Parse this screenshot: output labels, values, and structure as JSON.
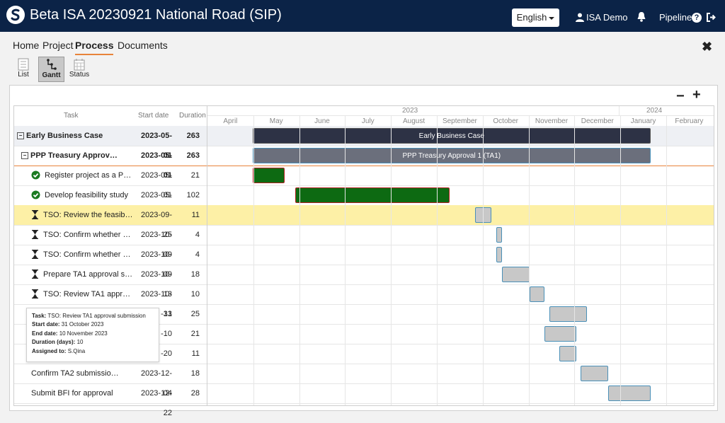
{
  "header": {
    "title": "Beta ISA 20230921 National Road (SIP)",
    "language": "English",
    "user": "ISA Demo",
    "pipeline": "Pipeline",
    "help": "?"
  },
  "nav": {
    "tabs": [
      {
        "label": "Home"
      },
      {
        "label": "Project"
      },
      {
        "label": "Process",
        "active": true
      },
      {
        "label": "Documents"
      }
    ],
    "close": "✖"
  },
  "views": [
    {
      "label": "List",
      "icon": "list-icon"
    },
    {
      "label": "Gantt",
      "icon": "gantt-icon",
      "active": true
    },
    {
      "label": "Status",
      "icon": "calendar-icon"
    }
  ],
  "zoom": {
    "out": "−",
    "in": "+"
  },
  "grid": {
    "headers": {
      "task": "Task",
      "start": "Start date",
      "duration": "Duration"
    }
  },
  "timescale": {
    "years": [
      {
        "label": "2023"
      },
      {
        "label": "2024"
      }
    ],
    "months": [
      "April",
      "May",
      "June",
      "July",
      "August",
      "September",
      "October",
      "November",
      "December",
      "January",
      "February"
    ]
  },
  "tasks": [
    {
      "label": "Early Business Case",
      "start_display": "2023-05-01",
      "duration": "263",
      "level": 0,
      "bold": true,
      "toggle": "−",
      "bar": {
        "start": "2023-05-01",
        "end": "2024-01-19",
        "label": "Early Business Case",
        "kind": "summary1"
      }
    },
    {
      "label": "PPP Treasury Approv…",
      "start_display": "2023-05-01",
      "duration": "263",
      "level": 1,
      "bold": true,
      "toggle": "−",
      "bar": {
        "start": "2023-05-01",
        "end": "2024-01-19",
        "label": "PPP Treasury Approval 1 (TA1)",
        "kind": "summary2"
      }
    },
    {
      "label": "Register project as a P…",
      "start_display": "2023-05-01",
      "duration": "21",
      "level": 2,
      "status": "check-icon",
      "bar": {
        "start": "2023-05-01",
        "end": "2023-05-22",
        "label": "",
        "kind": "done"
      }
    },
    {
      "label": "Develop feasibility study",
      "start_display": "2023-05-29",
      "duration": "102",
      "level": 2,
      "status": "check-icon",
      "bar": {
        "start": "2023-05-29",
        "end": "2023-09-08",
        "label": "",
        "kind": "done"
      }
    },
    {
      "label": "TSO: Review the feasib…",
      "start_display": "2023-09-25",
      "duration": "11",
      "level": 2,
      "status": "hourglass-icon",
      "highlight": true,
      "bar": {
        "start": "2023-09-25",
        "end": "2023-10-06",
        "label": "",
        "kind": "pending"
      }
    },
    {
      "label": "TSO: Confirm whether …",
      "start_display": "2023-10-09",
      "duration": "4",
      "level": 2,
      "status": "hourglass-icon",
      "bar": {
        "start": "2023-10-09",
        "end": "2023-10-13",
        "label": "",
        "kind": "pending"
      }
    },
    {
      "label": "TSO: Confirm whether …",
      "start_display": "2023-10-09",
      "duration": "4",
      "level": 2,
      "status": "hourglass-icon",
      "bar": {
        "start": "2023-10-09",
        "end": "2023-10-13",
        "label": "",
        "kind": "pending"
      }
    },
    {
      "label": "Prepare TA1 approval s…",
      "start_display": "2023-10-13",
      "duration": "18",
      "level": 2,
      "status": "hourglass-icon",
      "bar": {
        "start": "2023-10-13",
        "end": "2023-10-31",
        "label": "",
        "kind": "pending"
      }
    },
    {
      "label": "TSO: Review TA1 appr…",
      "start_display": "2023-10-31",
      "duration": "10",
      "level": 2,
      "status": "hourglass-icon",
      "bar": {
        "start": "2023-10-31",
        "end": "2023-11-10",
        "label": "",
        "kind": "pending"
      }
    },
    {
      "label": "",
      "start_display": "-13",
      "duration": "25",
      "level": 2,
      "bar": {
        "start": "2023-11-13",
        "end": "2023-12-08",
        "label": "",
        "kind": "pending"
      }
    },
    {
      "label": "",
      "start_display": "-10",
      "duration": "21",
      "level": 2,
      "bar": {
        "start": "2023-11-10",
        "end": "2023-12-01",
        "label": "",
        "kind": "pending"
      }
    },
    {
      "label": "",
      "start_display": "-20",
      "duration": "11",
      "level": 2,
      "bar": {
        "start": "2023-11-20",
        "end": "2023-12-01",
        "label": "",
        "kind": "pending"
      }
    },
    {
      "label": "Confirm TA2 submissio…",
      "start_display": "2023-12-04",
      "duration": "18",
      "level": 2,
      "bar": {
        "start": "2023-12-04",
        "end": "2023-12-22",
        "label": "",
        "kind": "pending"
      }
    },
    {
      "label": "Submit BFI for approval",
      "start_display": "2023-12-22",
      "duration": "28",
      "level": 2,
      "bar": {
        "start": "2023-12-22",
        "end": "2024-01-19",
        "label": "",
        "kind": "pending"
      }
    }
  ],
  "tooltip": {
    "task_label": "Task:",
    "task": "TSO: Review TA1 approval submission",
    "start_label": "Start date:",
    "start": "31 October 2023",
    "end_label": "End date:",
    "end": "10 November 2023",
    "duration_label": "Duration (days):",
    "duration": "10",
    "assigned_label": "Assigned to:",
    "assigned": "S.Qina"
  }
}
